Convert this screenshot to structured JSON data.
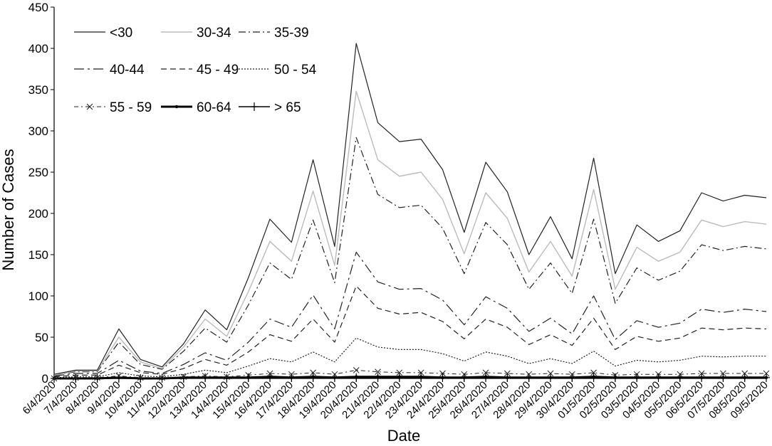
{
  "chart_data": {
    "type": "line",
    "title": "",
    "xlabel": "Date",
    "ylabel": "Number of Cases",
    "ylim": [
      0,
      450
    ],
    "yticks": [
      0,
      50,
      100,
      150,
      200,
      250,
      300,
      350,
      400,
      450
    ],
    "grid": false,
    "legend_position": "top-left",
    "categories": [
      "6/4/2020",
      "7/4/2020",
      "8/4/2020",
      "9/4/2020",
      "10/4/2020",
      "11/4/2020",
      "12/4/2020",
      "13/4/2020",
      "14/4/2020",
      "15/4/2020",
      "16/4/2020",
      "17/4/2020",
      "18/4/2020",
      "19/4/2020",
      "20/4/2020",
      "21/4/2020",
      "22/4/2020",
      "23/4/2020",
      "24/4/2020",
      "25/4/2020",
      "26/4/2020",
      "27/4/2020",
      "28/4/2020",
      "29/4/2020",
      "30/4/2020",
      "01/5/2020",
      "02/5/2020",
      "03/5/2020",
      "04/5/2020",
      "05/5/2020",
      "06/5/2020",
      "07/5/2020",
      "08/5/2020",
      "09/5/2020"
    ],
    "series": [
      {
        "name": "<30",
        "color": "#222222",
        "style": "solid-thin",
        "values": [
          5,
          10,
          10,
          60,
          23,
          14,
          42,
          83,
          59,
          122,
          193,
          165,
          265,
          160,
          406,
          310,
          287,
          290,
          253,
          177,
          262,
          226,
          150,
          196,
          145,
          267,
          127,
          186,
          166,
          179,
          225,
          215,
          222,
          219
        ]
      },
      {
        "name": "30-34",
        "color": "#bbbbbb",
        "style": "solid-light",
        "values": [
          4,
          9,
          9,
          50,
          20,
          12,
          38,
          72,
          51,
          105,
          166,
          142,
          227,
          137,
          348,
          265,
          245,
          250,
          217,
          151,
          225,
          194,
          129,
          166,
          124,
          229,
          108,
          159,
          142,
          153,
          192,
          184,
          190,
          187
        ]
      },
      {
        "name": "35-39",
        "color": "#222222",
        "style": "dash-dot",
        "values": [
          4,
          8,
          8,
          44,
          17,
          11,
          33,
          61,
          44,
          89,
          140,
          120,
          192,
          116,
          292,
          223,
          207,
          210,
          182,
          127,
          189,
          162,
          108,
          140,
          103,
          193,
          91,
          134,
          119,
          130,
          162,
          155,
          160,
          157
        ]
      },
      {
        "name": "40-44",
        "color": "#222222",
        "style": "dash-dot-long",
        "values": [
          3,
          6,
          6,
          22,
          9,
          6,
          17,
          31,
          22,
          44,
          72,
          62,
          101,
          60,
          153,
          117,
          108,
          109,
          95,
          65,
          99,
          85,
          57,
          73,
          54,
          100,
          47,
          70,
          62,
          67,
          84,
          80,
          84,
          81
        ]
      },
      {
        "name": "45 - 49",
        "color": "#222222",
        "style": "dashed",
        "values": [
          2,
          4,
          4,
          16,
          7,
          5,
          12,
          23,
          16,
          32,
          53,
          45,
          72,
          44,
          112,
          85,
          78,
          80,
          69,
          48,
          72,
          62,
          41,
          53,
          40,
          73,
          35,
          51,
          45,
          49,
          61,
          59,
          61,
          60
        ]
      },
      {
        "name": "50 - 54",
        "color": "#222222",
        "style": "dotted",
        "values": [
          1,
          2,
          2,
          7,
          3,
          2,
          5,
          10,
          7,
          15,
          24,
          20,
          32,
          20,
          49,
          38,
          35,
          35,
          30,
          21,
          32,
          27,
          18,
          24,
          18,
          33,
          15,
          22,
          20,
          22,
          27,
          26,
          27,
          27
        ]
      },
      {
        "name": "55 - 59",
        "color": "#222222",
        "style": "dash-dot-x",
        "values": [
          0,
          1,
          1,
          3,
          1,
          1,
          2,
          3,
          2,
          4,
          6,
          5,
          7,
          5,
          10,
          8,
          7,
          7,
          6,
          5,
          7,
          6,
          5,
          6,
          5,
          7,
          4,
          5,
          5,
          5,
          6,
          6,
          6,
          6
        ]
      },
      {
        "name": "60-64",
        "color": "#000000",
        "style": "solid-thick-dot",
        "values": [
          0,
          0,
          0,
          1,
          0,
          0,
          1,
          1,
          1,
          1,
          2,
          1,
          2,
          1,
          2,
          2,
          2,
          2,
          1,
          1,
          2,
          1,
          1,
          1,
          1,
          2,
          1,
          1,
          1,
          1,
          1,
          1,
          1,
          1
        ]
      },
      {
        "name": "> 65",
        "color": "#000000",
        "style": "solid-plus",
        "values": [
          0,
          0,
          0,
          0,
          0,
          0,
          0,
          1,
          0,
          1,
          1,
          1,
          1,
          1,
          1,
          1,
          1,
          1,
          1,
          1,
          1,
          1,
          1,
          1,
          1,
          1,
          1,
          1,
          1,
          1,
          1,
          1,
          1,
          1
        ]
      }
    ]
  }
}
